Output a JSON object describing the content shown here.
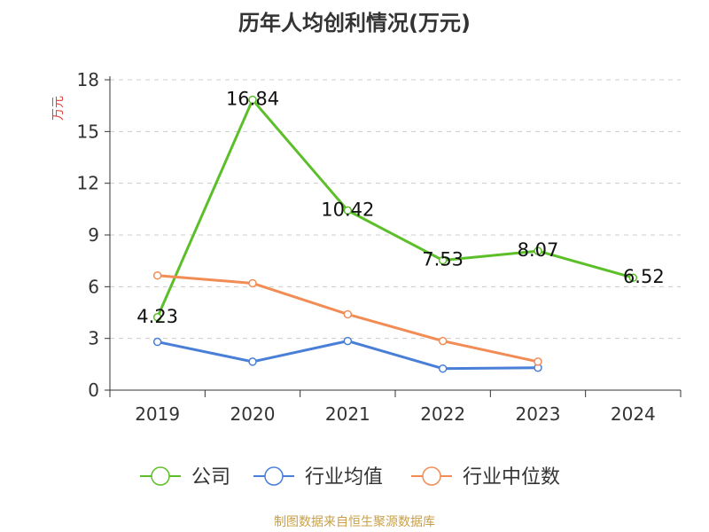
{
  "chart_title": "历年人均创利情况(万元)",
  "source": "制图数据来自恒生聚源数据库",
  "chart_data": {
    "type": "line",
    "title": "历年人均创利情况(万元)",
    "xlabel": "",
    "ylabel": "万元",
    "categories": [
      "2019",
      "2020",
      "2021",
      "2022",
      "2023",
      "2024"
    ],
    "ylim": [
      0,
      18
    ],
    "yticks": [
      0,
      3,
      6,
      9,
      12,
      15,
      18
    ],
    "grid": true,
    "legend_position": "bottom",
    "series": [
      {
        "name": "公司",
        "color": "#5cbf2a",
        "values": [
          4.23,
          16.84,
          10.42,
          7.53,
          8.07,
          6.52
        ],
        "labels": [
          "4.23",
          "16.84",
          "10.42",
          "7.53",
          "8.07",
          "6.52"
        ]
      },
      {
        "name": "行业均值",
        "color": "#4a7fd8",
        "values": [
          2.8,
          1.65,
          2.85,
          1.25,
          1.3,
          null
        ]
      },
      {
        "name": "行业中位数",
        "color": "#f28c55",
        "values": [
          6.65,
          6.2,
          4.4,
          2.85,
          1.65,
          null
        ]
      }
    ]
  }
}
